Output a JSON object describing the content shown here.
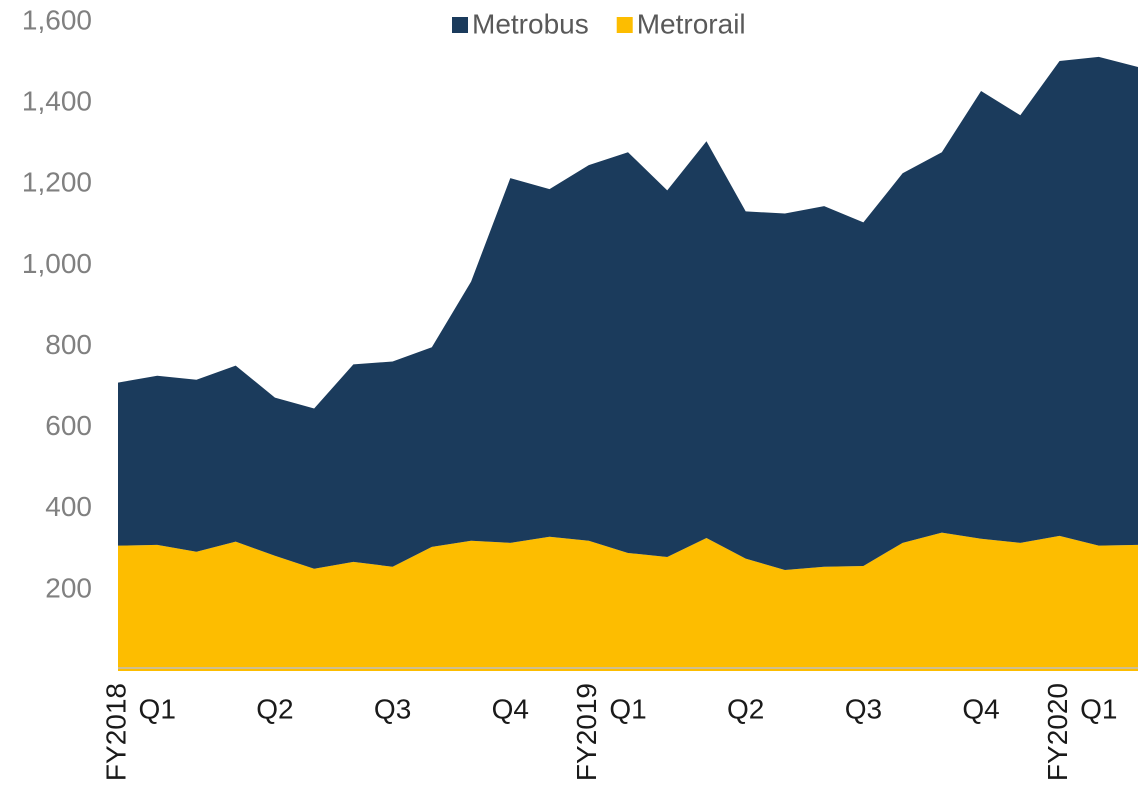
{
  "chart_data": {
    "type": "stacked_area",
    "categories": [
      "FY2018",
      "Q1",
      null,
      null,
      "Q2",
      null,
      null,
      "Q3",
      null,
      null,
      "Q4",
      null,
      "FY2019",
      "Q1",
      null,
      null,
      "Q2",
      null,
      null,
      "Q3",
      null,
      null,
      "Q4",
      null,
      "FY2020",
      "Q1",
      null
    ],
    "series": [
      {
        "name": "Metrobus",
        "color": "#1b3b5c",
        "values": [
          402,
          417,
          424,
          434,
          390,
          395,
          487,
          506,
          492,
          639,
          899,
          857,
          926,
          988,
          904,
          978,
          856,
          879,
          889,
          847,
          911,
          938,
          1104,
          1054,
          1171,
          1205,
          1178
        ]
      },
      {
        "name": "Metrorail",
        "color": "#fdbd00",
        "values": [
          309,
          311,
          294,
          319,
          284,
          252,
          269,
          257,
          306,
          321,
          316,
          331,
          321,
          291,
          281,
          328,
          277,
          249,
          257,
          259,
          316,
          341,
          326,
          316,
          333,
          309,
          311
        ]
      }
    ],
    "ylim": [
      0,
      1600
    ],
    "yticks": [
      200,
      400,
      600,
      800,
      {
        "value": 1000,
        "label": "1,000"
      },
      {
        "value": 1200,
        "label": "1,200"
      },
      {
        "value": 1400,
        "label": "1,400"
      },
      {
        "value": 1600,
        "label": "1,600"
      }
    ],
    "grid": false,
    "legend": "top"
  }
}
